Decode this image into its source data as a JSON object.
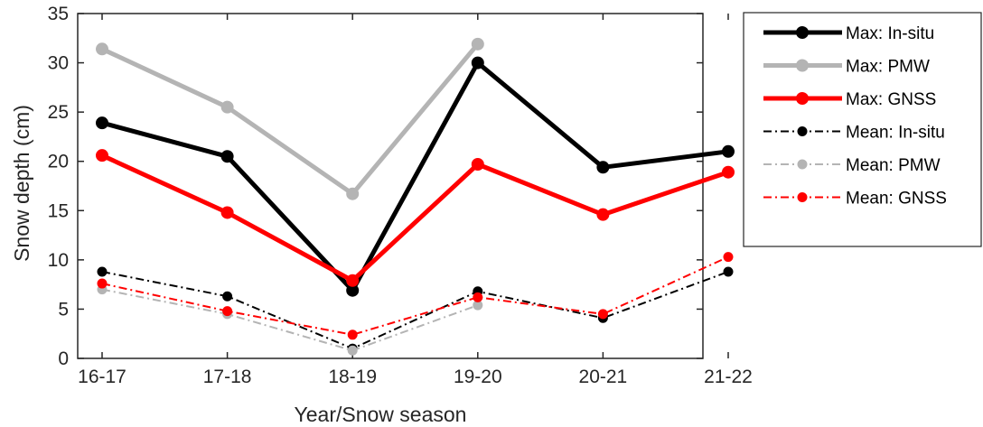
{
  "chart_data": {
    "type": "line",
    "categories": [
      "16-17",
      "17-18",
      "18-19",
      "19-20",
      "20-21",
      "21-22"
    ],
    "xlabel": "Year/Snow season",
    "ylabel": "Snow depth (cm)",
    "ylim": [
      0,
      35
    ],
    "yticks": [
      0,
      5,
      10,
      15,
      20,
      25,
      30,
      35
    ],
    "grid": false,
    "legend_position": "outside-right-top",
    "series": [
      {
        "name": "Max: In-situ",
        "color": "#000000",
        "style": "solid",
        "weight": "thick",
        "values": [
          23.9,
          20.5,
          6.9,
          30.0,
          19.4,
          21.0
        ]
      },
      {
        "name": "Max: PMW",
        "color": "#b4b4b4",
        "style": "solid",
        "weight": "thick",
        "values": [
          31.4,
          25.5,
          16.7,
          31.9,
          null,
          null
        ]
      },
      {
        "name": "Max: GNSS",
        "color": "#ff0000",
        "style": "solid",
        "weight": "thick",
        "values": [
          20.6,
          14.8,
          7.9,
          19.7,
          14.6,
          18.9
        ]
      },
      {
        "name": "Mean: In-situ",
        "color": "#000000",
        "style": "dashdot",
        "weight": "thin",
        "values": [
          8.8,
          6.3,
          1.0,
          6.8,
          4.1,
          8.8
        ]
      },
      {
        "name": "Mean: PMW",
        "color": "#b4b4b4",
        "style": "dashdot",
        "weight": "thin",
        "values": [
          7.0,
          4.5,
          0.8,
          5.4,
          null,
          null
        ]
      },
      {
        "name": "Mean: GNSS",
        "color": "#ff0000",
        "style": "dashdot",
        "weight": "thin",
        "values": [
          7.6,
          4.8,
          2.4,
          6.2,
          4.5,
          10.3
        ]
      }
    ]
  }
}
